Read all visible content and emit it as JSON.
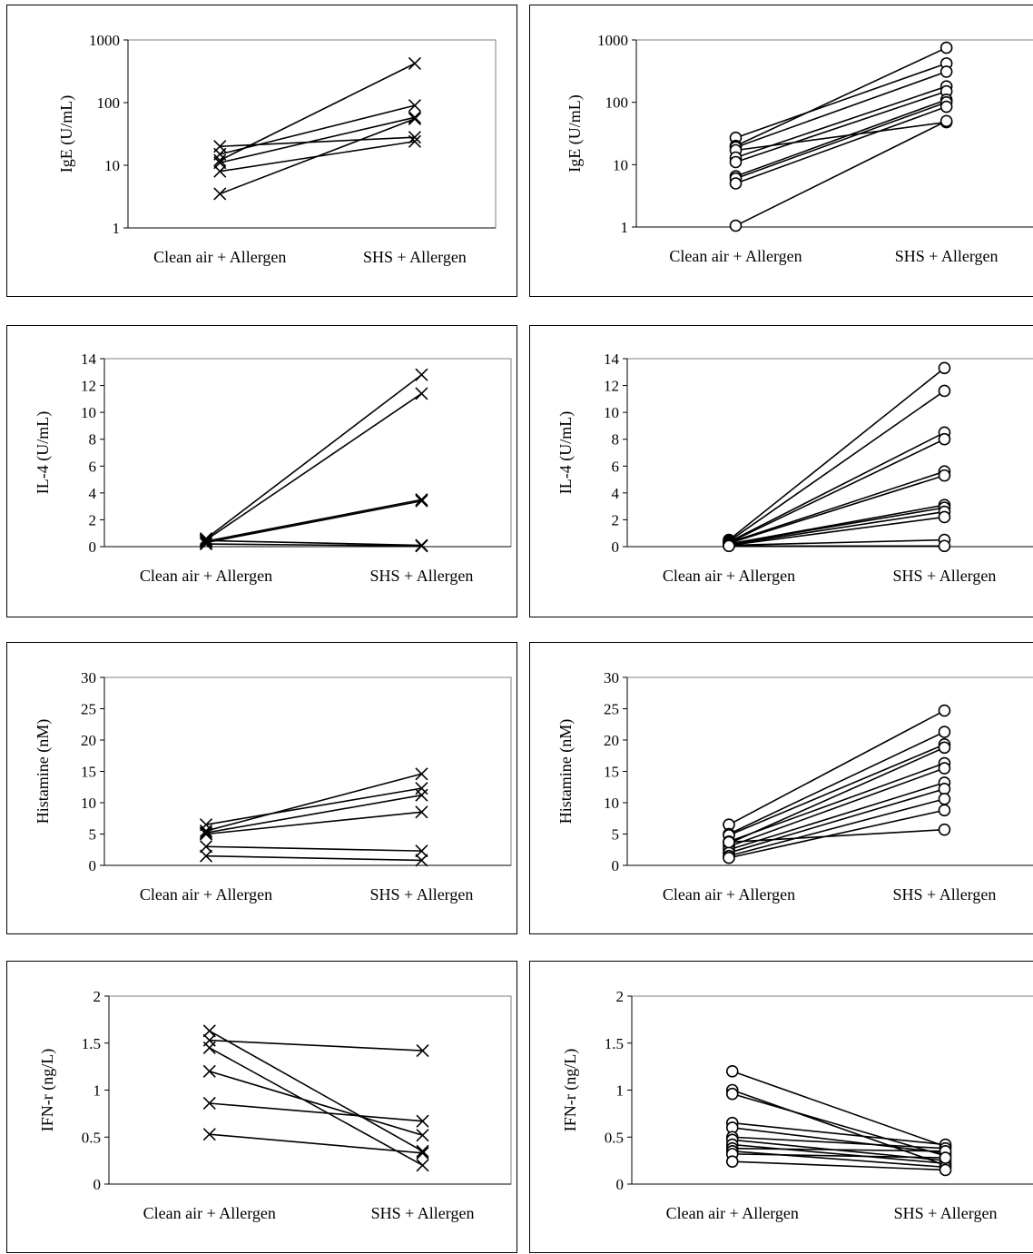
{
  "chart_data": [
    {
      "type": "line",
      "ylabel": "IgE (U/mL)",
      "yscale": "log",
      "ylim": [
        1,
        1000
      ],
      "yticks": [
        "1",
        "10",
        "100",
        "1000"
      ],
      "categories": [
        "Clean air + Allergen",
        "SHS + Allergen"
      ],
      "marker": "x",
      "grid": false,
      "series": [
        {
          "values": [
            20,
            28
          ]
        },
        {
          "values": [
            15,
            90
          ]
        },
        {
          "values": [
            12,
            420
          ]
        },
        {
          "values": [
            11,
            58
          ]
        },
        {
          "values": [
            8,
            24
          ]
        },
        {
          "values": [
            3.5,
            55
          ]
        }
      ]
    },
    {
      "type": "line",
      "ylabel": "IgE (U/mL)",
      "yscale": "log",
      "ylim": [
        1,
        1000
      ],
      "yticks": [
        "1",
        "10",
        "100",
        "1000"
      ],
      "categories": [
        "Clean air + Allergen",
        "SHS + Allergen"
      ],
      "marker": "circle",
      "grid": false,
      "series": [
        {
          "values": [
            27,
            420
          ]
        },
        {
          "values": [
            20,
            750
          ]
        },
        {
          "values": [
            19,
            310
          ]
        },
        {
          "values": [
            17,
            48
          ]
        },
        {
          "values": [
            13,
            180
          ]
        },
        {
          "values": [
            11,
            150
          ]
        },
        {
          "values": [
            6.5,
            110
          ]
        },
        {
          "values": [
            6,
            100
          ]
        },
        {
          "values": [
            5,
            85
          ]
        },
        {
          "values": [
            1.05,
            50
          ]
        }
      ]
    },
    {
      "type": "line",
      "ylabel": "IL-4 (U/mL)",
      "ylim": [
        0,
        14
      ],
      "yticks": [
        "0",
        "2",
        "4",
        "6",
        "8",
        "10",
        "12",
        "14"
      ],
      "categories": [
        "Clean air + Allergen",
        "SHS + Allergen"
      ],
      "marker": "x",
      "grid": false,
      "series": [
        {
          "values": [
            0.6,
            12.8
          ]
        },
        {
          "values": [
            0.5,
            11.4
          ]
        },
        {
          "values": [
            0.4,
            3.5
          ]
        },
        {
          "values": [
            0.3,
            3.4
          ]
        },
        {
          "values": [
            0.45,
            0.1
          ]
        },
        {
          "values": [
            0.2,
            0.05
          ]
        }
      ]
    },
    {
      "type": "line",
      "ylabel": "IL-4 (U/mL)",
      "ylim": [
        0,
        14
      ],
      "yticks": [
        "0",
        "2",
        "4",
        "6",
        "8",
        "10",
        "12",
        "14"
      ],
      "categories": [
        "Clean air + Allergen",
        "SHS + Allergen"
      ],
      "marker": "circle",
      "grid": false,
      "series": [
        {
          "values": [
            0.5,
            13.3
          ]
        },
        {
          "values": [
            0.4,
            11.6
          ]
        },
        {
          "values": [
            0.35,
            8.5
          ]
        },
        {
          "values": [
            0.3,
            8.0
          ]
        },
        {
          "values": [
            0.3,
            5.6
          ]
        },
        {
          "values": [
            0.25,
            5.3
          ]
        },
        {
          "values": [
            0.2,
            3.1
          ]
        },
        {
          "values": [
            0.2,
            2.9
          ]
        },
        {
          "values": [
            0.15,
            2.6
          ]
        },
        {
          "values": [
            0.1,
            2.2
          ]
        },
        {
          "values": [
            0.1,
            0.5
          ]
        },
        {
          "values": [
            0.05,
            0.05
          ]
        }
      ]
    },
    {
      "type": "line",
      "ylabel": "Histamine (nM)",
      "ylim": [
        0,
        30
      ],
      "yticks": [
        "0",
        "5",
        "10",
        "15",
        "20",
        "25",
        "30"
      ],
      "categories": [
        "Clean air + Allergen",
        "SHS + Allergen"
      ],
      "marker": "x",
      "grid": false,
      "series": [
        {
          "values": [
            6.5,
            12.3
          ]
        },
        {
          "values": [
            5.5,
            14.6
          ]
        },
        {
          "values": [
            5.2,
            11.2
          ]
        },
        {
          "values": [
            5.0,
            8.5
          ]
        },
        {
          "values": [
            3.0,
            2.3
          ]
        },
        {
          "values": [
            1.5,
            0.8
          ]
        }
      ]
    },
    {
      "type": "line",
      "ylabel": "Histamine (nM)",
      "ylim": [
        0,
        30
      ],
      "yticks": [
        "0",
        "5",
        "10",
        "15",
        "20",
        "25",
        "30"
      ],
      "categories": [
        "Clean air + Allergen",
        "SHS + Allergen"
      ],
      "marker": "circle",
      "grid": false,
      "series": [
        {
          "values": [
            6.5,
            24.7
          ]
        },
        {
          "values": [
            5.0,
            21.3
          ]
        },
        {
          "values": [
            4.8,
            19.3
          ]
        },
        {
          "values": [
            3.8,
            16.3
          ]
        },
        {
          "values": [
            3.5,
            18.8
          ]
        },
        {
          "values": [
            3.0,
            15.5
          ]
        },
        {
          "values": [
            2.5,
            13.2
          ]
        },
        {
          "values": [
            2.0,
            12.2
          ]
        },
        {
          "values": [
            1.5,
            10.6
          ]
        },
        {
          "values": [
            1.2,
            8.8
          ]
        },
        {
          "values": [
            3.7,
            5.7
          ]
        }
      ]
    },
    {
      "type": "line",
      "ylabel": "IFN-r (ng/L)",
      "ylim": [
        0,
        2
      ],
      "yticks": [
        "0",
        "0.5",
        "1",
        "1.5",
        "2"
      ],
      "categories": [
        "Clean air + Allergen",
        "SHS + Allergen"
      ],
      "marker": "x",
      "grid": false,
      "series": [
        {
          "values": [
            1.63,
            0.35
          ]
        },
        {
          "values": [
            1.53,
            1.42
          ]
        },
        {
          "values": [
            1.45,
            0.2
          ]
        },
        {
          "values": [
            1.2,
            0.52
          ]
        },
        {
          "values": [
            0.86,
            0.67
          ]
        },
        {
          "values": [
            0.53,
            0.33
          ]
        }
      ]
    },
    {
      "type": "line",
      "ylabel": "IFN-r (ng/L)",
      "ylim": [
        0,
        2
      ],
      "yticks": [
        "0",
        "0.5",
        "1",
        "1.5",
        "2"
      ],
      "categories": [
        "Clean air + Allergen",
        "SHS + Allergen"
      ],
      "marker": "circle",
      "grid": false,
      "series": [
        {
          "values": [
            1.2,
            0.4
          ]
        },
        {
          "values": [
            1.0,
            0.2
          ]
        },
        {
          "values": [
            0.96,
            0.3
          ]
        },
        {
          "values": [
            0.65,
            0.42
          ]
        },
        {
          "values": [
            0.6,
            0.33
          ]
        },
        {
          "values": [
            0.5,
            0.38
          ]
        },
        {
          "values": [
            0.47,
            0.25
          ]
        },
        {
          "values": [
            0.42,
            0.22
          ]
        },
        {
          "values": [
            0.38,
            0.35
          ]
        },
        {
          "values": [
            0.35,
            0.18
          ]
        },
        {
          "values": [
            0.32,
            0.28
          ]
        },
        {
          "values": [
            0.24,
            0.15
          ]
        }
      ]
    }
  ]
}
